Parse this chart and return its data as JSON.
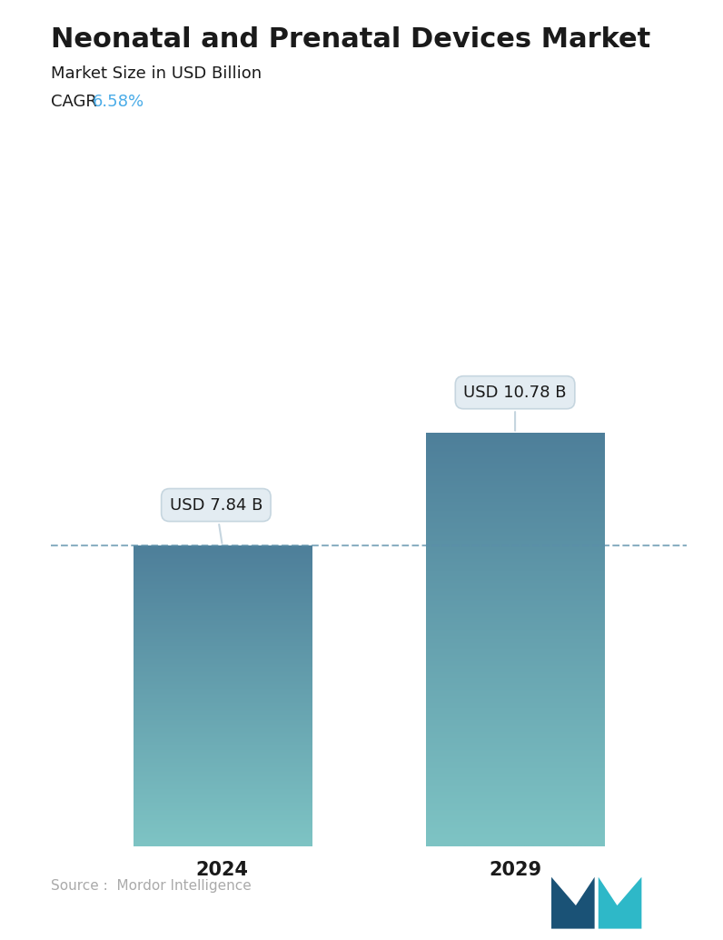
{
  "title": "Neonatal and Prenatal Devices Market",
  "subtitle": "Market Size in USD Billion",
  "cagr_label": "CAGR ",
  "cagr_value": "6.58%",
  "cagr_color": "#4AACE8",
  "categories": [
    "2024",
    "2029"
  ],
  "values": [
    7.84,
    10.78
  ],
  "bar_labels": [
    "USD 7.84 B",
    "USD 10.78 B"
  ],
  "ylim": [
    0,
    13.5
  ],
  "dashed_line_y": 7.84,
  "bar_color_top": "#4E7F9A",
  "bar_color_bottom": "#7EC4C4",
  "bar_width": 0.28,
  "x_positions": [
    0.27,
    0.73
  ],
  "source_text": "Source :  Mordor Intelligence",
  "background_color": "#FFFFFF",
  "title_fontsize": 22,
  "subtitle_fontsize": 13,
  "cagr_fontsize": 13,
  "xlabel_fontsize": 15,
  "annotation_fontsize": 13,
  "bubble_facecolor": "#E2ECF2",
  "bubble_edgecolor": "#C5D5DF"
}
